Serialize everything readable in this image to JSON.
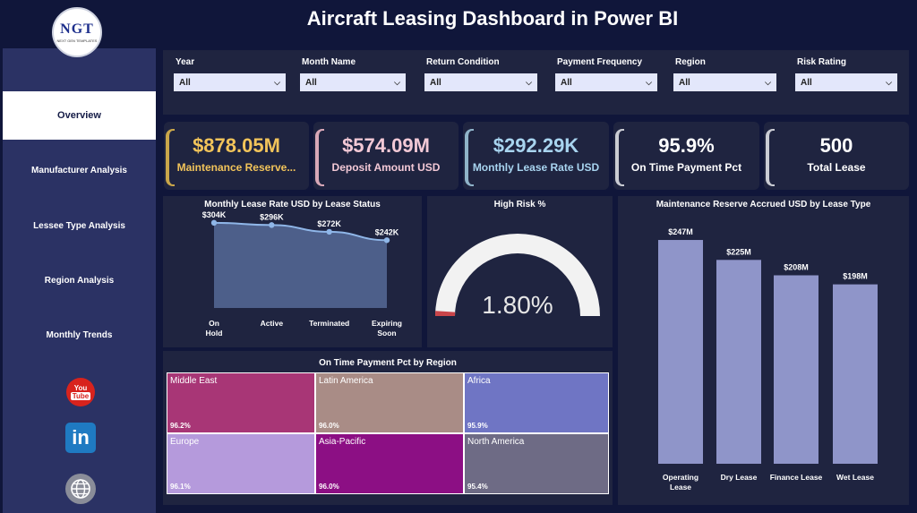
{
  "header": {
    "title": "Aircraft Leasing Dashboard in Power BI"
  },
  "logo": {
    "text": "NGT",
    "subtext": "NEXT GEN TEMPLATES"
  },
  "sidebar": {
    "items": [
      {
        "label": "Overview",
        "active": true
      },
      {
        "label": "Manufacturer Analysis"
      },
      {
        "label": "Lessee Type Analysis"
      },
      {
        "label": "Region Analysis"
      },
      {
        "label": "Monthly Trends"
      }
    ],
    "social": {
      "youtube_top": "You",
      "youtube_bottom": "Tube",
      "linkedin": "in"
    }
  },
  "filters": [
    {
      "label": "Year",
      "value": "All"
    },
    {
      "label": "Month Name",
      "value": "All"
    },
    {
      "label": "Return Condition",
      "value": "All"
    },
    {
      "label": "Payment Frequency",
      "value": "All"
    },
    {
      "label": "Region",
      "value": "All"
    },
    {
      "label": "Risk Rating",
      "value": "All"
    }
  ],
  "kpis": [
    {
      "value": "$878.05M",
      "label": "Maintenance Reserve...",
      "value_color": "#f2c45a",
      "label_color": "#f2c45a",
      "accent": "#c9a64a"
    },
    {
      "value": "$574.09M",
      "label": "Deposit Amount USD",
      "value_color": "#f3c9d6",
      "label_color": "#f3c9d6",
      "accent": "#d7a7b7"
    },
    {
      "value": "$292.29K",
      "label": "Monthly Lease Rate USD",
      "value_color": "#a8d4ef",
      "label_color": "#a8d4ef",
      "accent": "#8fb3c9"
    },
    {
      "value": "95.9%",
      "label": "On Time Payment Pct",
      "value_color": "#ffffff",
      "label_color": "#ffffff",
      "accent": "#c9cbd3"
    },
    {
      "value": "500",
      "label": "Total Lease",
      "value_color": "#ffffff",
      "label_color": "#ffffff",
      "accent": "#c9cbd3"
    }
  ],
  "line_chart": {
    "title": "Monthly Lease Rate USD by Lease Status",
    "chart_data": {
      "type": "area",
      "categories": [
        "On Hold",
        "Active",
        "Terminated",
        "Expiring Soon"
      ],
      "values": [
        304,
        296,
        272,
        242
      ],
      "data_labels": [
        "$304K",
        "$296K",
        "$272K",
        "$242K"
      ],
      "unit": "K USD",
      "ylim": [
        0,
        310
      ]
    }
  },
  "gauge": {
    "title": "High Risk %",
    "value_label": "1.80%",
    "value": 1.8,
    "max": 100
  },
  "bar_chart": {
    "title": "Maintenance Reserve Accrued USD by Lease Type",
    "chart_data": {
      "type": "bar",
      "categories": [
        "Operating Lease",
        "Dry Lease",
        "Finance Lease",
        "Wet Lease"
      ],
      "values": [
        247,
        225,
        208,
        198
      ],
      "data_labels": [
        "$247M",
        "$225M",
        "$208M",
        "$198M"
      ],
      "unit": "M USD",
      "ylim": [
        0,
        250
      ]
    }
  },
  "treemap": {
    "title": "On Time Payment Pct by Region",
    "cells": [
      {
        "name": "Middle East",
        "value": "96.2%",
        "color": "#a83676"
      },
      {
        "name": "Latin America",
        "value": "96.0%",
        "color": "#a98c86"
      },
      {
        "name": "Africa",
        "value": "95.9%",
        "color": "#6f75c4"
      },
      {
        "name": "Europe",
        "value": "96.1%",
        "color": "#b59adc"
      },
      {
        "name": "Asia-Pacific",
        "value": "96.0%",
        "color": "#8c0f84"
      },
      {
        "name": "North America",
        "value": "95.4%",
        "color": "#6e6b85"
      }
    ]
  }
}
